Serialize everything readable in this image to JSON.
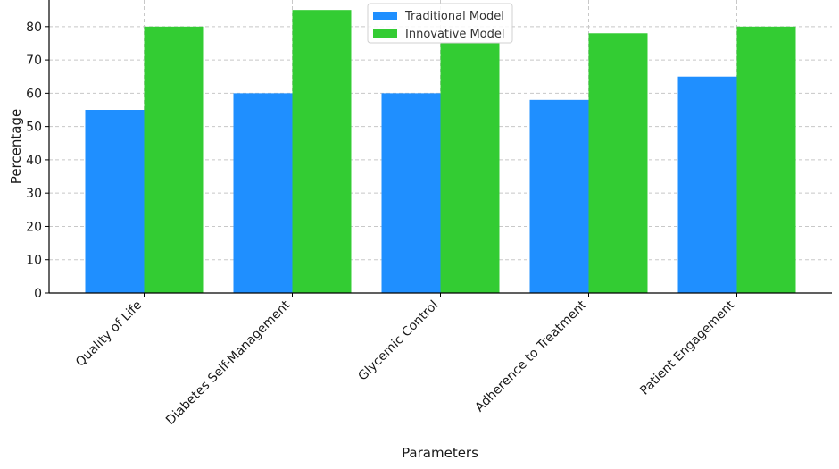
{
  "chart_data": {
    "type": "bar",
    "title": "",
    "xlabel": "Parameters",
    "ylabel": "Percentage",
    "categories": [
      "Quality of Life",
      "Diabetes Self-Management",
      "Glycemic Control",
      "Adherence to Treatment",
      "Patient Engagement"
    ],
    "series": [
      {
        "name": "Traditional Model",
        "values": [
          55,
          60,
          60,
          58,
          65
        ],
        "color": "#1f8fff"
      },
      {
        "name": "Innovative Model",
        "values": [
          80,
          85,
          75,
          78,
          80
        ],
        "color": "#33cc33"
      }
    ],
    "ylim": [
      0,
      88
    ],
    "yticks": [
      0,
      10,
      20,
      30,
      40,
      50,
      60,
      70,
      80
    ],
    "grid": true,
    "legend_position": "top-center"
  }
}
